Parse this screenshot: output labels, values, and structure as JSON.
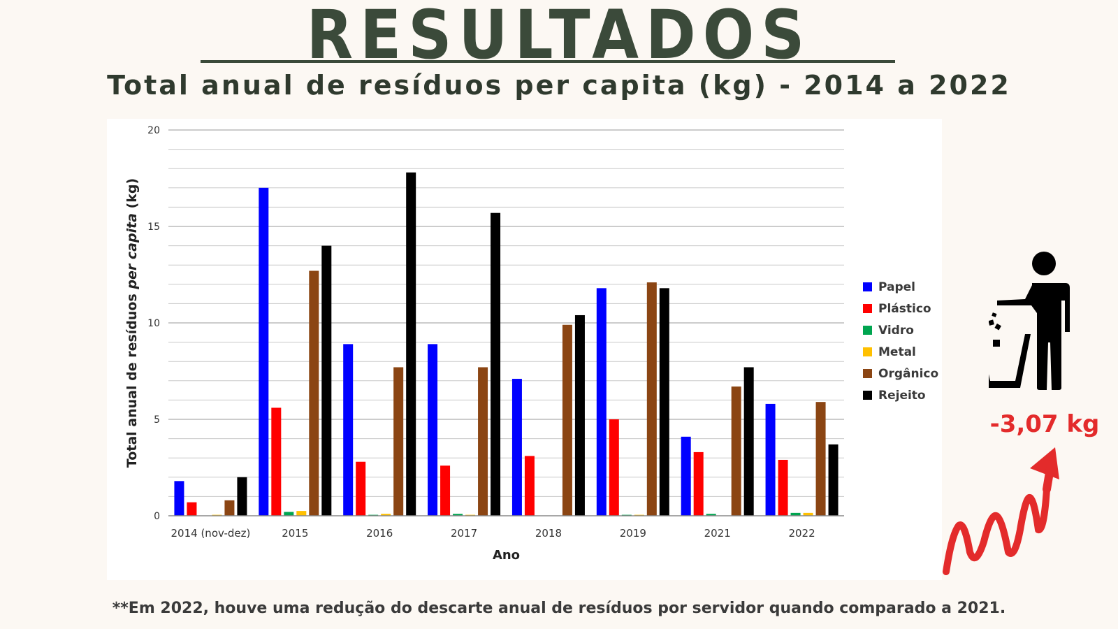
{
  "header": {
    "title": "RESULTADOS",
    "subtitle": "Total anual de resíduos per capita (kg) - 2014 a 2022"
  },
  "callout": {
    "value": "-3,07 kg",
    "color": "#e32b2b",
    "icons": [
      "person-trash-icon",
      "zigzag-arrow-up-icon"
    ]
  },
  "footnote": "**Em 2022, houve uma redução do descarte anual de resíduos por servidor quando comparado a 2021.",
  "chart_data": {
    "type": "bar",
    "categories": [
      "2014  (nov-dez)",
      "2015",
      "2016",
      "2017",
      "2018",
      "2019",
      "2021",
      "2022"
    ],
    "series": [
      {
        "name": "Papel",
        "color": "#0000ff",
        "values": [
          1.8,
          17.0,
          8.9,
          8.9,
          7.1,
          11.8,
          4.1,
          5.8
        ]
      },
      {
        "name": "Plástico",
        "color": "#ff0000",
        "values": [
          0.7,
          5.6,
          2.8,
          2.6,
          3.1,
          5.0,
          3.3,
          2.9
        ]
      },
      {
        "name": "Vidro",
        "color": "#00a550",
        "values": [
          0.0,
          0.2,
          0.05,
          0.1,
          0.0,
          0.05,
          0.1,
          0.15
        ]
      },
      {
        "name": "Metal",
        "color": "#ffc000",
        "values": [
          0.05,
          0.25,
          0.1,
          0.05,
          0.0,
          0.05,
          0.0,
          0.15
        ]
      },
      {
        "name": "Orgânico",
        "color": "#8b4513",
        "values": [
          0.8,
          12.7,
          7.7,
          7.7,
          9.9,
          12.1,
          6.7,
          5.9
        ]
      },
      {
        "name": "Rejeito",
        "color": "#000000",
        "values": [
          2.0,
          14.0,
          17.8,
          15.7,
          10.4,
          11.8,
          7.7,
          3.7
        ]
      }
    ],
    "xlabel": "Ano",
    "ylabel_prefix": "Total anual de resíduos ",
    "ylabel_italic": "per capita",
    "ylabel_suffix": " (kg)",
    "yticks": [
      "0",
      "5",
      "10",
      "15",
      "20"
    ],
    "ylim": [
      0,
      20
    ],
    "grid": true,
    "legend_position": "right"
  }
}
